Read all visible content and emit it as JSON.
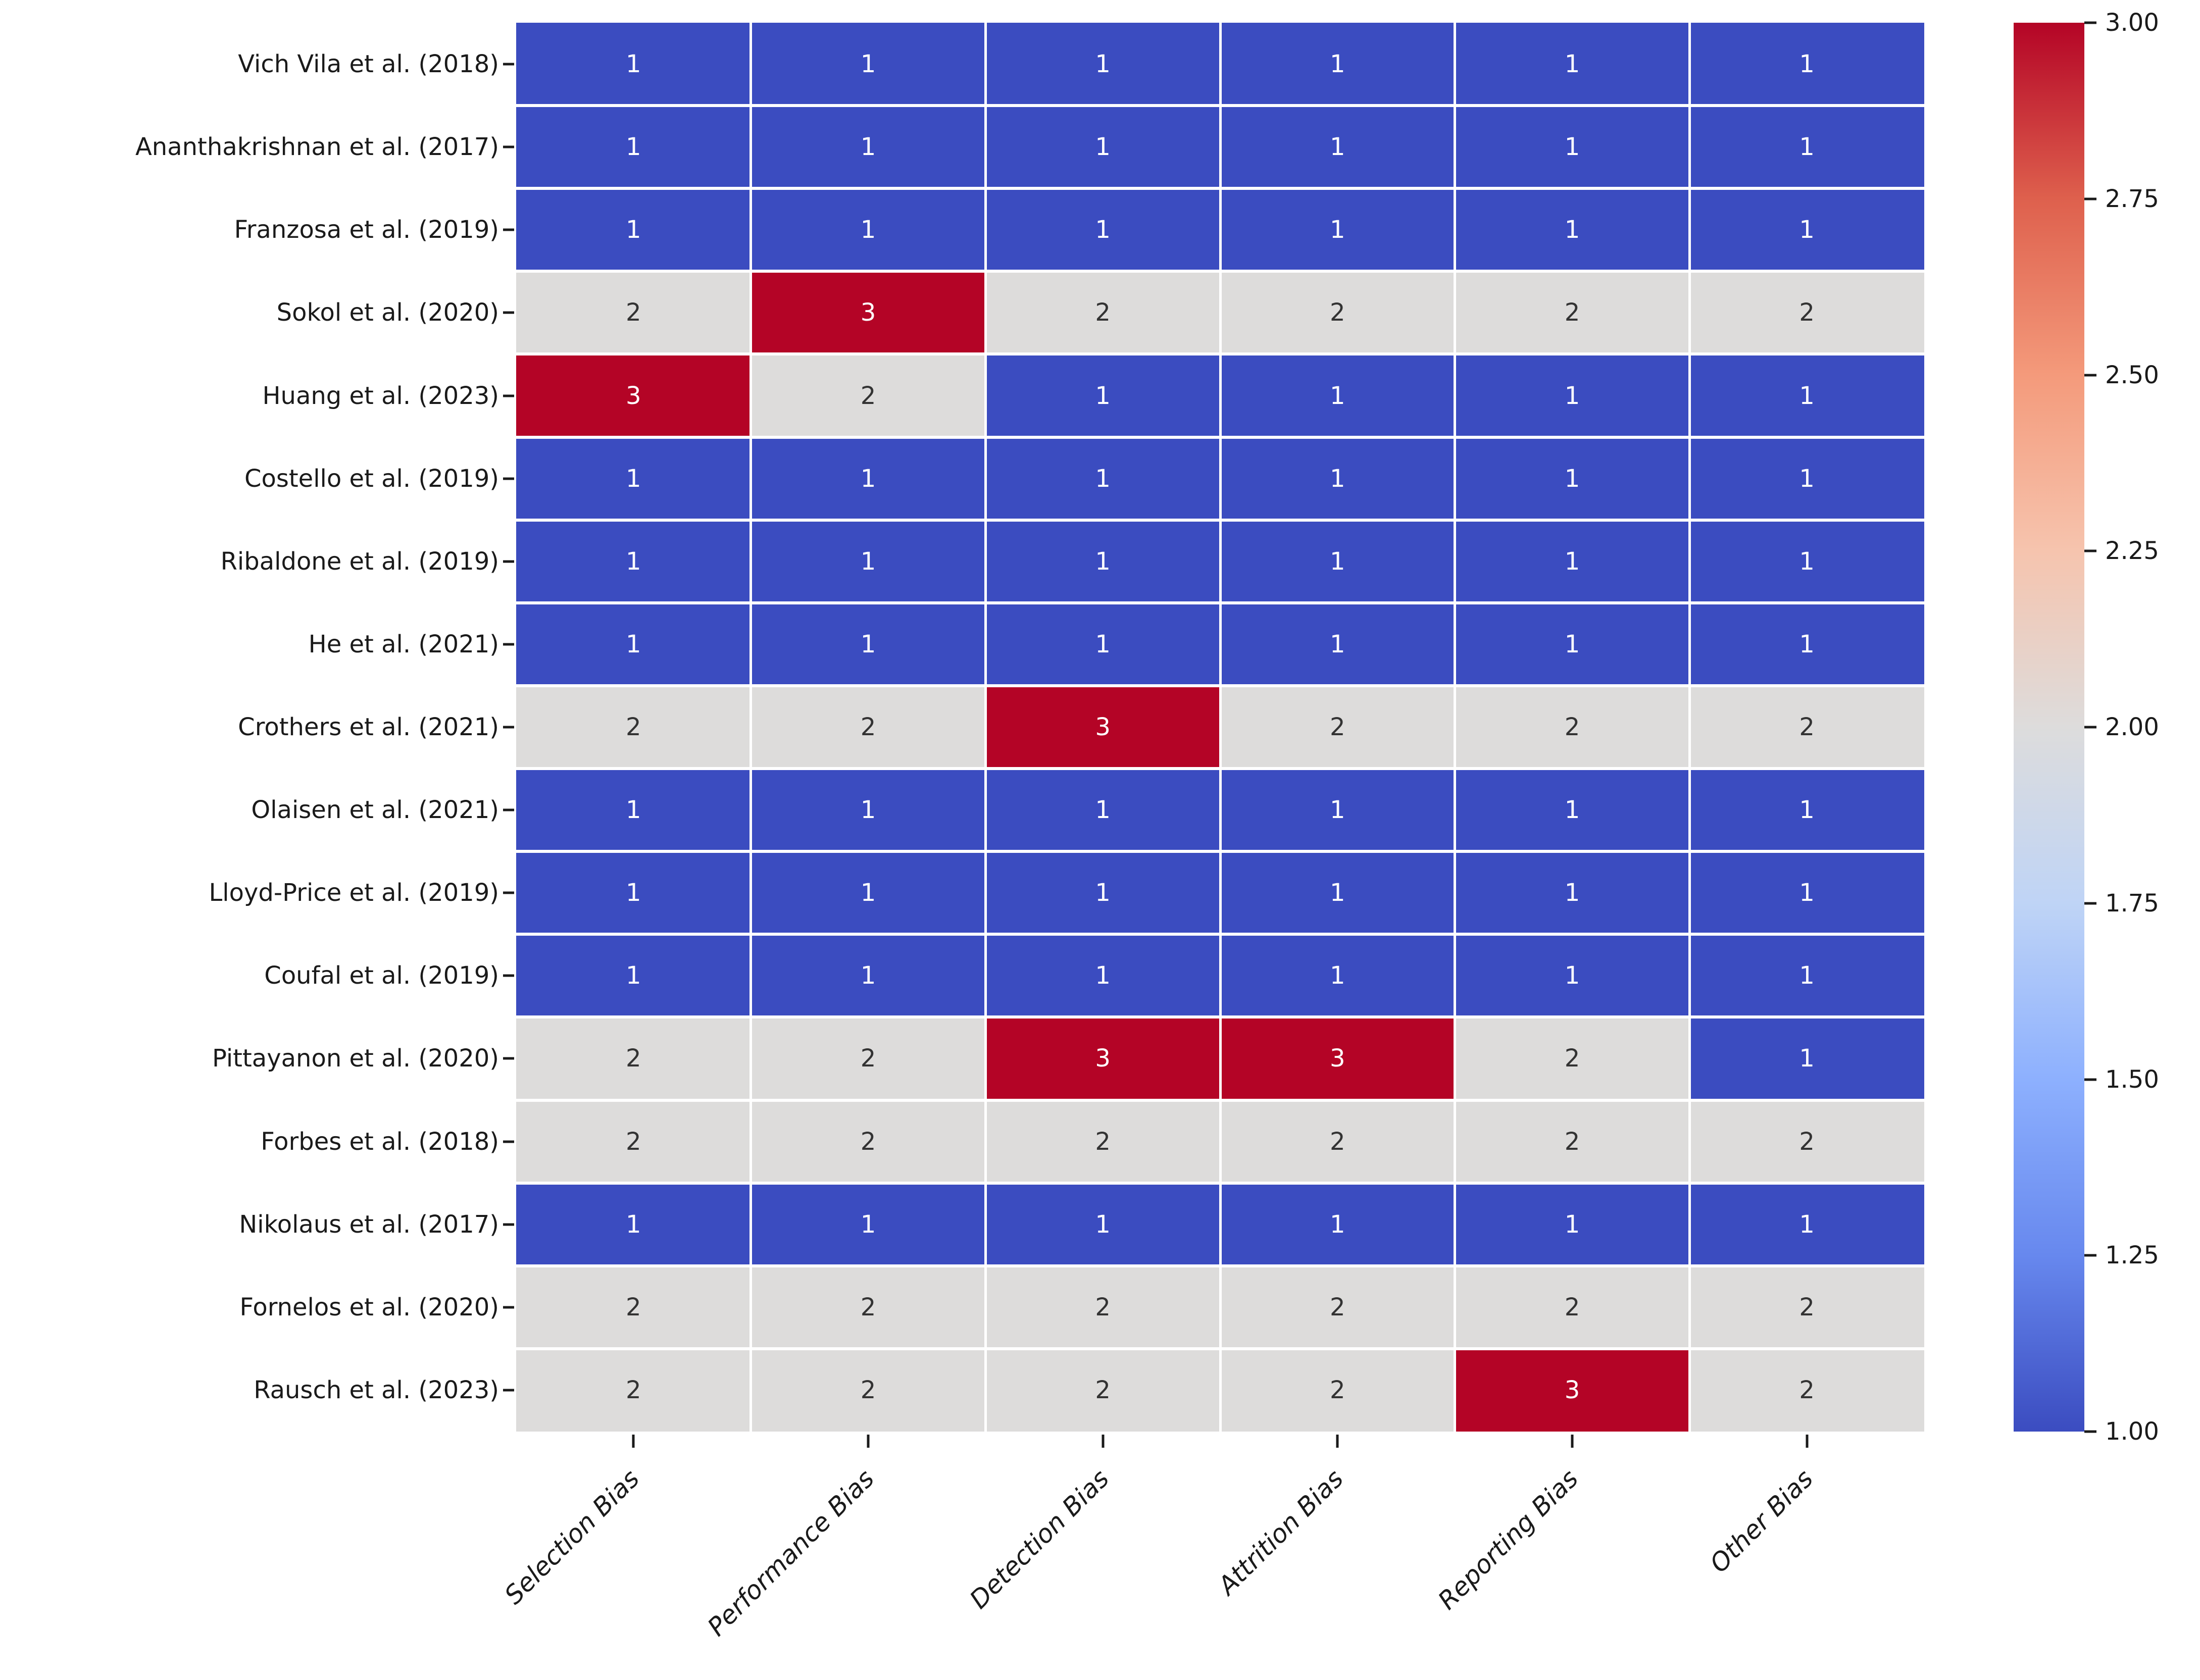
{
  "figure": {
    "background": "#ffffff",
    "kind": "risk-of-bias-heatmap"
  },
  "chart_data": {
    "type": "heatmap",
    "title": "",
    "xlabel": "",
    "ylabel": "",
    "x_categories": [
      "Selection Bias",
      "Performance Bias",
      "Detection Bias",
      "Attrition Bias",
      "Reporting Bias",
      "Other Bias"
    ],
    "y_categories": [
      "Vich Vila et al. (2018)",
      "Ananthakrishnan et al. (2017)",
      "Franzosa et al. (2019)",
      "Sokol et al. (2020)",
      "Huang et al. (2023)",
      "Costello et al. (2019)",
      "Ribaldone et al. (2019)",
      "He et al. (2021)",
      "Crothers et al. (2021)",
      "Olaisen et al. (2021)",
      "Lloyd-Price et al. (2019)",
      "Coufal et al. (2019)",
      "Pittayanon et al. (2020)",
      "Forbes et al. (2018)",
      "Nikolaus et al. (2017)",
      "Fornelos et al. (2020)",
      "Rausch et al. (2023)"
    ],
    "values": [
      [
        1,
        1,
        1,
        1,
        1,
        1
      ],
      [
        1,
        1,
        1,
        1,
        1,
        1
      ],
      [
        1,
        1,
        1,
        1,
        1,
        1
      ],
      [
        2,
        3,
        2,
        2,
        2,
        2
      ],
      [
        3,
        2,
        1,
        1,
        1,
        1
      ],
      [
        1,
        1,
        1,
        1,
        1,
        1
      ],
      [
        1,
        1,
        1,
        1,
        1,
        1
      ],
      [
        1,
        1,
        1,
        1,
        1,
        1
      ],
      [
        2,
        2,
        3,
        2,
        2,
        2
      ],
      [
        1,
        1,
        1,
        1,
        1,
        1
      ],
      [
        1,
        1,
        1,
        1,
        1,
        1
      ],
      [
        1,
        1,
        1,
        1,
        1,
        1
      ],
      [
        2,
        2,
        3,
        3,
        2,
        1
      ],
      [
        2,
        2,
        2,
        2,
        2,
        2
      ],
      [
        1,
        1,
        1,
        1,
        1,
        1
      ],
      [
        2,
        2,
        2,
        2,
        2,
        2
      ],
      [
        2,
        2,
        2,
        2,
        3,
        2
      ]
    ],
    "value_range": [
      1,
      3
    ],
    "colormap_name": "coolwarm",
    "cell_colors": {
      "1": "#3b4cc0",
      "2": "#dddcdb",
      "3": "#b40426"
    },
    "value_text_colors": {
      "1": "#ffffff",
      "2": "#333333",
      "3": "#ffffff"
    },
    "grid_line_color": "#ffffff",
    "legend_position": "right",
    "colorbar": {
      "tick_labels": [
        "3.00",
        "2.75",
        "2.50",
        "2.25",
        "2.00",
        "1.75",
        "1.50",
        "1.25",
        "1.00"
      ],
      "gradient_stops": [
        {
          "pos": 0.0,
          "color": "#b40426"
        },
        {
          "pos": 0.125,
          "color": "#de604d"
        },
        {
          "pos": 0.25,
          "color": "#f49a7b"
        },
        {
          "pos": 0.375,
          "color": "#f6c4ae"
        },
        {
          "pos": 0.5,
          "color": "#dddcdc"
        },
        {
          "pos": 0.625,
          "color": "#bfd4f6"
        },
        {
          "pos": 0.75,
          "color": "#8db0fe"
        },
        {
          "pos": 0.875,
          "color": "#6788ee"
        },
        {
          "pos": 1.0,
          "color": "#3b4cc0"
        }
      ]
    }
  }
}
